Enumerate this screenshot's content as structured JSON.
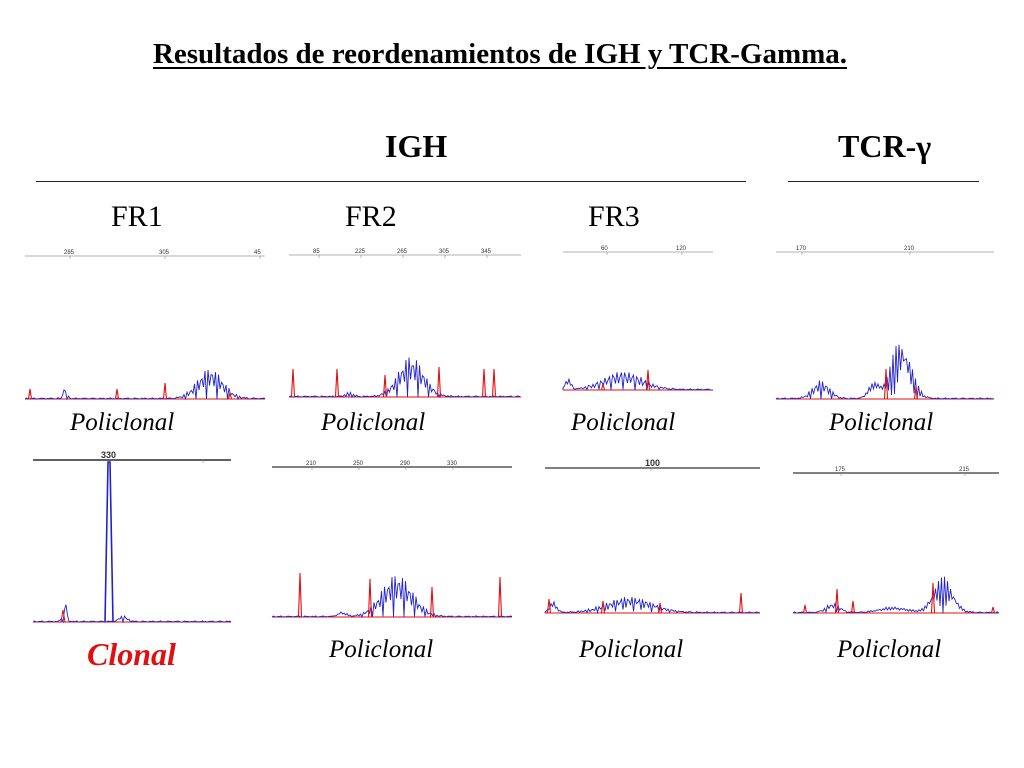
{
  "title": "Resultados de reordenamientos de IGH y TCR-Gamma.",
  "groups": {
    "igh": "IGH",
    "tcr": "TCR-γ"
  },
  "columns": [
    "FR1",
    "FR2",
    "FR3"
  ],
  "colors": {
    "clonal": "#e01010",
    "blue_trace": "#2222cc",
    "red_trace": "#e01010"
  },
  "panels": [
    {
      "status": "Policlonal",
      "ticks": [
        "285",
        "305",
        "45"
      ]
    },
    {
      "status": "Policlonal",
      "ticks": [
        "85",
        "225",
        "265",
        "305",
        "345"
      ]
    },
    {
      "status": "Policlonal",
      "ticks": [
        "60",
        "120"
      ]
    },
    {
      "status": "Policlonal",
      "ticks": [
        "170",
        "210"
      ]
    },
    {
      "status": "Clonal",
      "ticks": [
        "330"
      ]
    },
    {
      "status": "Policlonal",
      "ticks": [
        "210",
        "250",
        "290",
        "330"
      ]
    },
    {
      "status": "Policlonal",
      "ticks": [
        "100"
      ]
    },
    {
      "status": "Policlonal",
      "ticks": [
        "175",
        "215"
      ]
    }
  ]
}
